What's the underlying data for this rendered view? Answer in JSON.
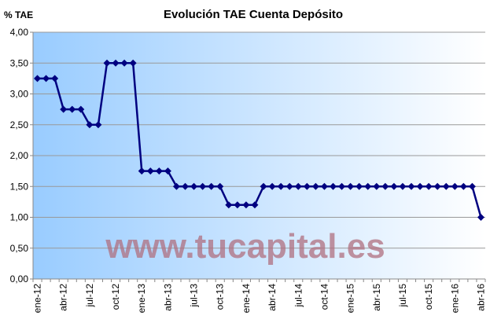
{
  "chart_data": {
    "type": "line",
    "title": "Evolución TAE Cuenta Depósito",
    "y_label": "% TAE",
    "annotation": "www.tucapital.es",
    "categories": [
      "ene-12",
      null,
      null,
      "abr-12",
      null,
      null,
      "jul-12",
      null,
      null,
      "oct-12",
      null,
      null,
      "ene-13",
      null,
      null,
      "abr-13",
      null,
      null,
      "jul-13",
      null,
      null,
      "oct-13",
      null,
      null,
      "ene-14",
      null,
      null,
      "abr-14",
      null,
      null,
      "jul-14",
      null,
      null,
      "oct-14",
      null,
      null,
      "ene-15",
      null,
      null,
      "abr-15",
      null,
      null,
      "jul-15",
      null,
      null,
      "oct-15",
      null,
      null,
      "ene-16",
      null,
      null,
      "abr-16"
    ],
    "values": [
      3.25,
      3.25,
      3.25,
      2.75,
      2.75,
      2.75,
      2.5,
      2.5,
      3.5,
      3.5,
      3.5,
      3.5,
      1.75,
      1.75,
      1.75,
      1.75,
      1.5,
      1.5,
      1.5,
      1.5,
      1.5,
      1.5,
      1.2,
      1.2,
      1.2,
      1.2,
      1.5,
      1.5,
      1.5,
      1.5,
      1.5,
      1.5,
      1.5,
      1.5,
      1.5,
      1.5,
      1.5,
      1.5,
      1.5,
      1.5,
      1.5,
      1.5,
      1.5,
      1.5,
      1.5,
      1.5,
      1.5,
      1.5,
      1.5,
      1.5,
      1.5,
      1.0
    ],
    "color": "#000080",
    "ylim": [
      0,
      4
    ],
    "yticks": [
      {
        "value": 0,
        "label": "0,00"
      },
      {
        "value": 0.5,
        "label": "0,50"
      },
      {
        "value": 1,
        "label": "1,00"
      },
      {
        "value": 1.5,
        "label": "1,50"
      },
      {
        "value": 2,
        "label": "2,00"
      },
      {
        "value": 2.5,
        "label": "2,50"
      },
      {
        "value": 3,
        "label": "3,00"
      },
      {
        "value": 3.5,
        "label": "3,50"
      },
      {
        "value": 4,
        "label": "4,00"
      }
    ],
    "grid": true
  }
}
